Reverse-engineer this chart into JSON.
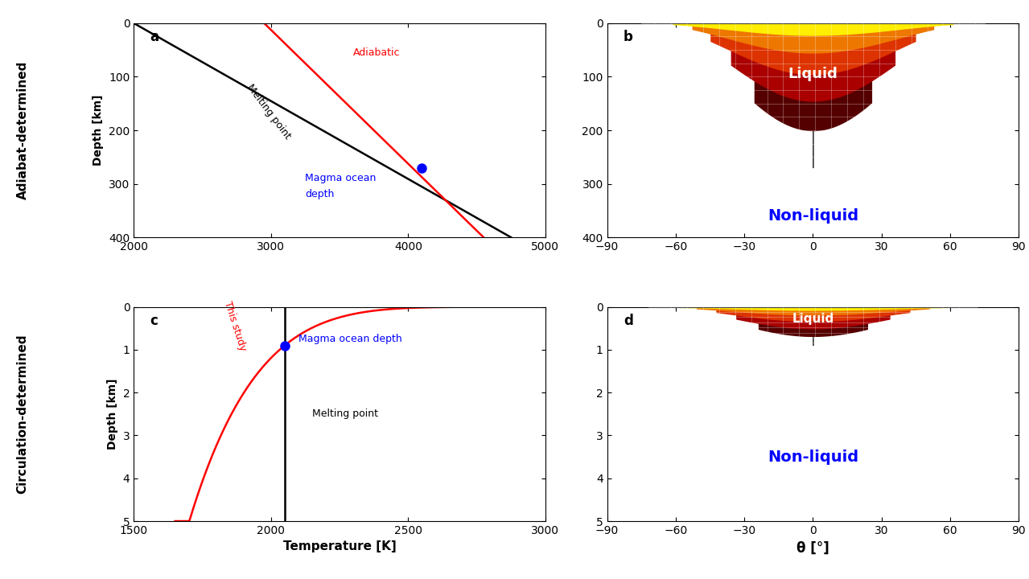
{
  "panel_a": {
    "xlim": [
      2000,
      5000
    ],
    "ylim": [
      400,
      0
    ],
    "yticks": [
      0,
      100,
      200,
      300,
      400
    ],
    "xticks": [
      2000,
      3000,
      4000,
      5000
    ],
    "melting_T_at_0": 2000,
    "melting_T_at_400": 4750,
    "adiabatic_T_at_0": 2950,
    "adiabatic_T_at_400": 4550,
    "dot_x": 4100,
    "dot_y": 270,
    "label_melting": "Melting point",
    "label_adiabatic": "Adiabatic",
    "label_dot1": "Magma ocean",
    "label_dot2": "depth",
    "panel_label": "a"
  },
  "panel_b": {
    "xlim": [
      -90,
      90
    ],
    "ylim": [
      400,
      0
    ],
    "yticks": [
      0,
      100,
      200,
      300,
      400
    ],
    "xticks": [
      -90,
      -60,
      -30,
      0,
      30,
      60,
      90
    ],
    "label_liquid": "Liquid",
    "label_nonliquid": "Non-liquid",
    "panel_label": "b",
    "max_depth": 270,
    "theta_extent": 75,
    "level_depths": [
      270,
      200,
      145,
      95,
      55,
      22
    ],
    "level_colors": [
      "#111111",
      "#550000",
      "#aa0000",
      "#dd3300",
      "#ee7700",
      "#ffee00"
    ]
  },
  "panel_c": {
    "xlim": [
      1500,
      3000
    ],
    "ylim": [
      5.0,
      0
    ],
    "yticks": [
      0,
      1.0,
      2.0,
      3.0,
      4.0,
      5.0
    ],
    "xticks": [
      1500,
      2000,
      2500,
      3000
    ],
    "melting_T": 2050,
    "dot_x": 2050,
    "dot_y": 0.9,
    "T_ref": 3000,
    "depth_ref": 0.9,
    "depth_exponent": 5.5,
    "label_melting": "Melting point",
    "label_this_study": "This study",
    "label_dot": "Magma ocean depth",
    "panel_label": "c"
  },
  "panel_d": {
    "xlim": [
      -90,
      90
    ],
    "ylim": [
      5.0,
      0
    ],
    "yticks": [
      0,
      1.0,
      2.0,
      3.0,
      4.0,
      5.0
    ],
    "xticks": [
      -90,
      -60,
      -30,
      0,
      30,
      60,
      90
    ],
    "label_liquid": "Liquid",
    "label_nonliquid": "Non-liquid",
    "panel_label": "d",
    "max_depth": 0.9,
    "theta_extent": 72,
    "level_depths": [
      0.9,
      0.68,
      0.5,
      0.33,
      0.18,
      0.07
    ],
    "level_colors": [
      "#111111",
      "#550000",
      "#aa0000",
      "#dd3300",
      "#ee7700",
      "#ffee00"
    ]
  },
  "ylabel_top": "Depth [km]",
  "ylabel_bot": "Depth [km]",
  "outer_label_top": "Adiabat-determined",
  "outer_label_bot": "Circulation-determined",
  "xlabel_c": "Temperature [K]",
  "xlabel_d": "θ [°]"
}
